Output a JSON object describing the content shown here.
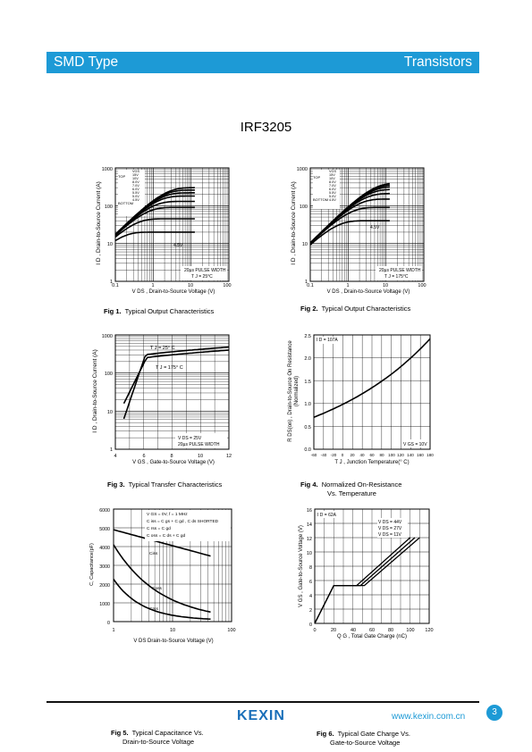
{
  "header": {
    "left": "SMD Type",
    "right": "Transistors"
  },
  "part_number": "IRF3205",
  "fig1": {
    "caption_num": "Fig 1.",
    "caption_text": "Typical Output Characteristics",
    "ylabel": "I D , Drain-to-Source Current (A)",
    "xlabel": "V DS , Drain-to-Source Voltage (V)",
    "yticks": [
      "1000",
      "100",
      "10",
      "1"
    ],
    "xticks": [
      "0.1",
      "1",
      "10",
      "100"
    ],
    "legend_top": "TOP",
    "legend_bottom": "BOTTOM",
    "vgs": [
      "VGS",
      "15V",
      "10V",
      "8.0V",
      "7.0V",
      "6.0V",
      "5.5V",
      "5.0V",
      "4.5V"
    ],
    "curve_label": "4.5V",
    "note1": "20µs PULSE WIDTH",
    "note2": "T J = 25°C"
  },
  "fig2": {
    "caption_num": "Fig 2.",
    "caption_text": "Typical Output Characteristics",
    "ylabel": "I D , Drain-to-Source Current (A)",
    "xlabel": "V DS , Drain-to-Source Voltage (V)",
    "yticks": [
      "1000",
      "100",
      "10",
      "1"
    ],
    "xticks": [
      "0.1",
      "1",
      "10",
      "100"
    ],
    "legend_top": "TOP",
    "legend_bottom": "BOTTOM",
    "vgs": [
      "VGS",
      "15V",
      "10V",
      "8.0V",
      "7.0V",
      "6.0V",
      "5.5V",
      "5.0V",
      "4.5V"
    ],
    "curve_label": "4.5V",
    "note1": "20µs PULSE WIDTH",
    "note2": "T J = 175°C"
  },
  "fig3": {
    "caption_num": "Fig 3.",
    "caption_text": "Typical Transfer Characteristics",
    "ylabel": "I D , Drain-to-Source Current (A)",
    "xlabel": "V GS , Gate-to-Source Voltage (V)",
    "yticks": [
      "1000",
      "100",
      "10",
      "1"
    ],
    "xticks": [
      "4",
      "6",
      "8",
      "10",
      "12"
    ],
    "label_25": "T J = 25° C",
    "label_175": "T J = 175° C",
    "note1": "V DS = 25V",
    "note2": "20µs PULSE WIDTH"
  },
  "fig4": {
    "caption_num": "Fig 4.",
    "caption_text": "Normalized On-Resistance",
    "caption_text2": "Vs. Temperature",
    "ylabel": "R DS(on) , Drain-to-Source On Resistance",
    "ylabel2": "(Normalized)",
    "xlabel": "T J , Junction Temperature(° C)",
    "yticks": [
      "2.5",
      "2.0",
      "1.5",
      "1.0",
      "0.5",
      "0.0"
    ],
    "xticks": [
      "-60",
      "-40",
      "-20",
      "0",
      "20",
      "40",
      "60",
      "80",
      "100",
      "120",
      "140",
      "160",
      "180"
    ],
    "note_id": "I D = 107A",
    "note_vgs": "V GS = 10V"
  },
  "fig5": {
    "caption_num": "Fig 5.",
    "caption_text": "Typical Capacitance Vs.",
    "caption_text2": "Drain-to-Source Voltage",
    "ylabel": "C, Capacitance(pF)",
    "xlabel": "V DS Drain-to-Source Voltage (V)",
    "yticks": [
      "6000",
      "5000",
      "4000",
      "3000",
      "2000",
      "1000",
      "0"
    ],
    "xticks": [
      "1",
      "10",
      "100"
    ],
    "legend": [
      "V GS = 0V,   f = 1 MHz",
      "C iss = C gs + C gd , C ds  SHORTED",
      "C rss = C gd",
      "C oss = C ds + C gd"
    ],
    "labels": [
      "Ciss",
      "Coss",
      "Crss"
    ]
  },
  "fig6": {
    "caption_num": "Fig 6.",
    "caption_text": "Typical Gate Charge Vs.",
    "caption_text2": "Gate-to-Source Voltage",
    "ylabel": "V GS , Gate-to-Source Voltage (V)",
    "xlabel": "Q G , Total Gate Charge (nC)",
    "yticks": [
      "16",
      "14",
      "12",
      "10",
      "8",
      "6",
      "4",
      "2",
      "0"
    ],
    "xticks": [
      "0",
      "20",
      "40",
      "60",
      "80",
      "100",
      "120"
    ],
    "note_id": "I D = 62A",
    "vds": [
      "V DS = 44V",
      "V DS = 27V",
      "V DS = 11V"
    ]
  },
  "footer": {
    "logo": "KEXIN",
    "url": "www.kexin.com.cn",
    "page": "3"
  }
}
